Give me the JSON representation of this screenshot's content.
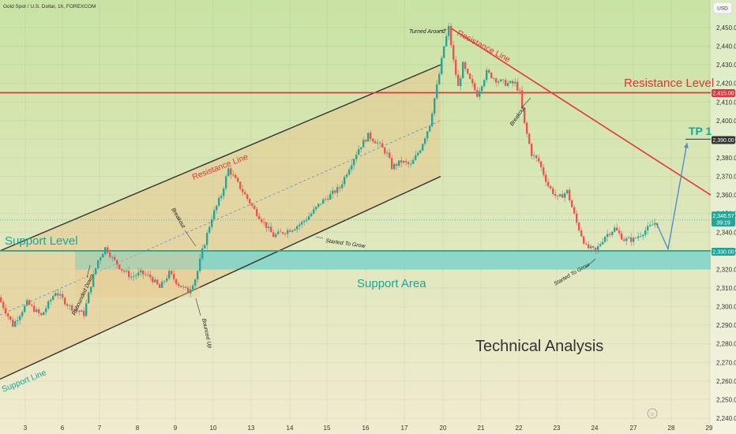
{
  "header": {
    "title": "Gold Spot / U.S. Dollar, 1h, FOREXCOM",
    "currency": "USD"
  },
  "colors": {
    "bg_top": "#c9e3a4",
    "bg_bottom": "#f1ebd0",
    "channel_fill": "#e8c98f",
    "support_area": "#7fd3c9",
    "resistance_red": "#e8323c",
    "support_teal": "#17a79a",
    "up_candle": "#26a69a",
    "down_candle": "#ef5350",
    "arrow_blue": "#4f8fc8",
    "dark_line": "#333333"
  },
  "chart_data": {
    "type": "candlestick",
    "x_ticks": [
      "3",
      "6",
      "7",
      "8",
      "9",
      "10",
      "13",
      "14",
      "15",
      "16",
      "17",
      "20",
      "21",
      "22",
      "23",
      "24",
      "27",
      "28",
      "29"
    ],
    "y_ticks": [
      "2,450.00",
      "2,440.00",
      "2,430.00",
      "2,420.00",
      "2,410.00",
      "2,400.00",
      "2,390.00",
      "2,380.00",
      "2,370.00",
      "2,360.00",
      "2,350.00",
      "2,340.00",
      "2,330.00",
      "2,320.00",
      "2,310.00",
      "2,300.00",
      "2,290.00",
      "2,280.00",
      "2,270.00",
      "2,260.00",
      "2,250.00",
      "2,240.00"
    ],
    "y_range": [
      2236,
      2457
    ],
    "price_path": [
      [
        0,
        2305
      ],
      [
        3,
        2290
      ],
      [
        6,
        2302
      ],
      [
        9,
        2295
      ],
      [
        12,
        2308
      ],
      [
        15,
        2300
      ],
      [
        18,
        2296
      ],
      [
        19.6,
        2313
      ],
      [
        21,
        2325
      ],
      [
        22.6,
        2332
      ],
      [
        24,
        2326
      ],
      [
        26,
        2320
      ],
      [
        28,
        2316
      ],
      [
        30,
        2318
      ],
      [
        32,
        2316
      ],
      [
        34,
        2310
      ],
      [
        36,
        2318
      ],
      [
        38,
        2312
      ],
      [
        40,
        2308
      ],
      [
        41.7,
        2316
      ],
      [
        43,
        2330
      ],
      [
        45,
        2348
      ],
      [
        47,
        2360
      ],
      [
        48.5,
        2374
      ],
      [
        50,
        2368
      ],
      [
        52,
        2360
      ],
      [
        54,
        2352
      ],
      [
        56,
        2345
      ],
      [
        58,
        2338
      ],
      [
        60,
        2340
      ],
      [
        62,
        2342
      ],
      [
        64,
        2345
      ],
      [
        66,
        2350
      ],
      [
        68,
        2356
      ],
      [
        70,
        2360
      ],
      [
        72,
        2364
      ],
      [
        74,
        2375
      ],
      [
        76,
        2385
      ],
      [
        78,
        2392
      ],
      [
        80,
        2388
      ],
      [
        82,
        2382
      ],
      [
        83,
        2375
      ],
      [
        85,
        2378
      ],
      [
        87,
        2376
      ],
      [
        89,
        2385
      ],
      [
        91,
        2398
      ],
      [
        92,
        2412
      ],
      [
        93,
        2425
      ],
      [
        94,
        2440
      ],
      [
        95,
        2450
      ],
      [
        96,
        2432
      ],
      [
        97,
        2418
      ],
      [
        98,
        2430
      ],
      [
        99,
        2424
      ],
      [
        101,
        2414
      ],
      [
        103,
        2426
      ],
      [
        105,
        2422
      ],
      [
        107,
        2420
      ],
      [
        109,
        2420
      ],
      [
        110,
        2415
      ],
      [
        111,
        2398
      ],
      [
        112.5,
        2382
      ],
      [
        114,
        2378
      ],
      [
        116,
        2365
      ],
      [
        118,
        2358
      ],
      [
        120,
        2362
      ],
      [
        122,
        2345
      ],
      [
        124,
        2332
      ],
      [
        126,
        2330
      ],
      [
        128,
        2338
      ],
      [
        130,
        2342
      ],
      [
        132,
        2336
      ],
      [
        134,
        2336
      ],
      [
        136,
        2340
      ],
      [
        137.5,
        2343
      ],
      [
        138.5,
        2345
      ]
    ],
    "projection": [
      [
        138.5,
        2345
      ],
      [
        141,
        2331
      ],
      [
        145,
        2388
      ]
    ],
    "levels": {
      "resistance": 2415,
      "support": 2330,
      "tp1": 2390,
      "current": 2346.57
    },
    "support_area": [
      2320,
      2330
    ],
    "channel": {
      "upper": [
        [
          0,
          2330
        ],
        [
          93,
          2430
        ]
      ],
      "lower": [
        [
          0,
          2261
        ],
        [
          93,
          2370
        ]
      ]
    },
    "resistance_trend": [
      [
        95,
        2450
      ],
      [
        150,
        2360
      ]
    ],
    "price_tags": {
      "current": "2,346.57",
      "countdown": "39:19",
      "resistance": "2,415.00",
      "tp1": "2,390.00",
      "support": "2,330.00"
    }
  },
  "annotations": {
    "resistance_level": "Resistance Level",
    "support_level": "Support Level",
    "support_area": "Support Area",
    "support_line": "Support Line",
    "resistance_line_channel": "Resistance Line",
    "resistance_line_trend": "Resistance Line",
    "tp1": "TP 1",
    "technical_analysis": "Technical Analysis",
    "breakout_1": "Breakout",
    "breakout_2": "Breakout",
    "rebounded_down": "Rebounded Down",
    "bounced_up": "Bounced Up",
    "started_to_grow_1": "Started To Grow",
    "started_to_grow_2": "Started To Grow",
    "turned_around": "Turned Around"
  }
}
